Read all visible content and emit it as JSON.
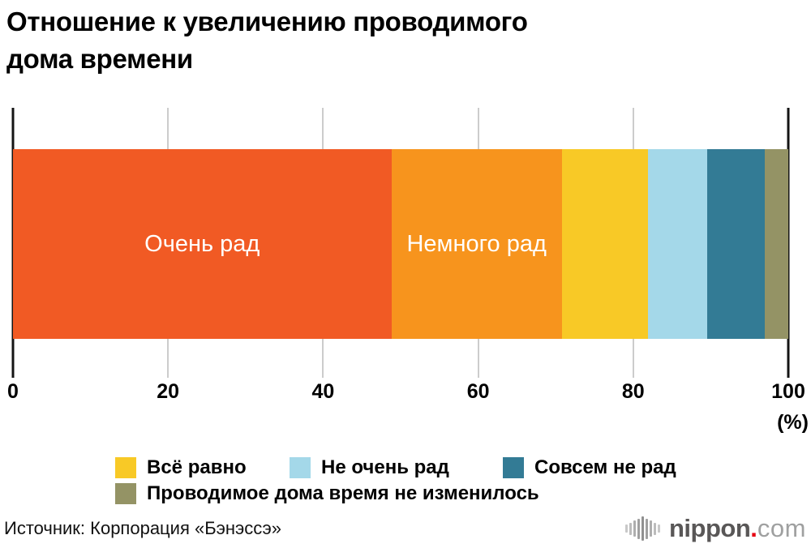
{
  "title": "Отношение к увеличению проводимого\nдома времени",
  "chart_data": {
    "type": "bar",
    "stacked": true,
    "orientation": "horizontal",
    "title": "Отношение к увеличению проводимого дома времени",
    "unit": "%",
    "xlim": [
      0,
      100
    ],
    "x_ticks": [
      0,
      20,
      40,
      60,
      80,
      100
    ],
    "axis_unit_label": "(%)",
    "grid": true,
    "segments": [
      {
        "label": "Очень рад",
        "value": 48.8,
        "color": "#F15A24",
        "label_in_bar": true,
        "text_color": "#FFFFFF"
      },
      {
        "label": "Немного рад",
        "value": 22.0,
        "color": "#F7941D",
        "label_in_bar": true,
        "text_color": "#FFFFFF"
      },
      {
        "label": "Всё равно",
        "value": 11.1,
        "color": "#F8C926",
        "label_in_bar": false
      },
      {
        "label": "Не очень рад",
        "value": 7.6,
        "color": "#A4D8E9",
        "label_in_bar": false
      },
      {
        "label": "Совсем не рад",
        "value": 7.5,
        "color": "#337B95",
        "label_in_bar": false
      },
      {
        "label": "Проводимое дома время не изменилось",
        "value": 3.0,
        "color": "#949365",
        "label_in_bar": false
      }
    ],
    "legend_position": "bottom"
  },
  "legend": {
    "rows": [
      [
        2,
        3,
        4
      ],
      [
        5
      ]
    ]
  },
  "source": "Источник: Корпорация «Бэнэссэ»",
  "logo": {
    "name": "nippon.com",
    "text_main": "nippon",
    "dot": ".",
    "text_suffix": "com",
    "color_main": "#595757",
    "color_dot": "#E60012",
    "color_suffix": "#9FA0A0"
  },
  "colors": {
    "gridline": "#CCCCCC",
    "axis_line": "#141414",
    "background": "#FFFFFF",
    "text": "#000000"
  }
}
